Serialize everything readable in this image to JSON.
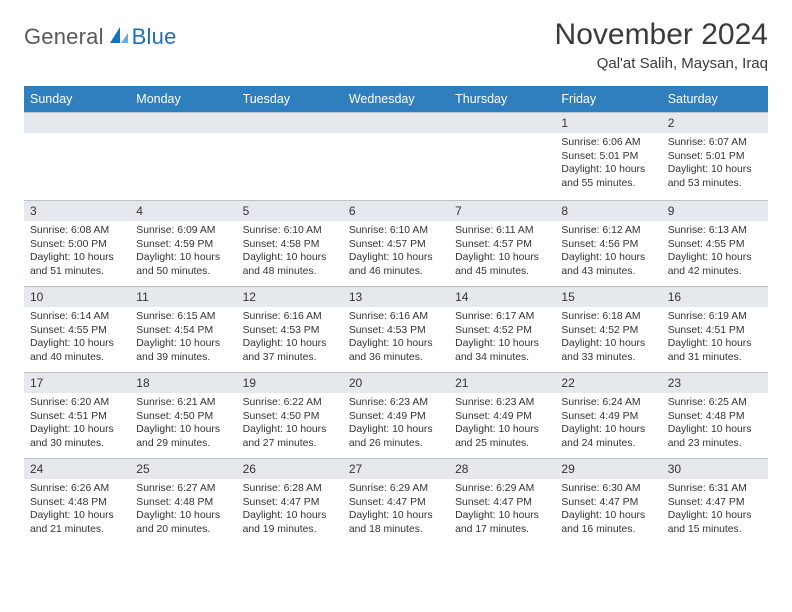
{
  "brand": {
    "word1": "General",
    "word2": "Blue"
  },
  "title": "November 2024",
  "location": "Qal'at Salih, Maysan, Iraq",
  "colors": {
    "header_bg": "#2f7fbf",
    "header_text": "#ffffff",
    "daynum_bg": "#e5e9ed",
    "border": "#b9c1c9",
    "text": "#333333",
    "brand_gray": "#5a5a5a",
    "brand_blue": "#1c6fb8"
  },
  "dow": [
    "Sunday",
    "Monday",
    "Tuesday",
    "Wednesday",
    "Thursday",
    "Friday",
    "Saturday"
  ],
  "weeks": [
    [
      {
        "n": "",
        "sr": "",
        "ss": "",
        "dl": ""
      },
      {
        "n": "",
        "sr": "",
        "ss": "",
        "dl": ""
      },
      {
        "n": "",
        "sr": "",
        "ss": "",
        "dl": ""
      },
      {
        "n": "",
        "sr": "",
        "ss": "",
        "dl": ""
      },
      {
        "n": "",
        "sr": "",
        "ss": "",
        "dl": ""
      },
      {
        "n": "1",
        "sr": "Sunrise: 6:06 AM",
        "ss": "Sunset: 5:01 PM",
        "dl": "Daylight: 10 hours and 55 minutes."
      },
      {
        "n": "2",
        "sr": "Sunrise: 6:07 AM",
        "ss": "Sunset: 5:01 PM",
        "dl": "Daylight: 10 hours and 53 minutes."
      }
    ],
    [
      {
        "n": "3",
        "sr": "Sunrise: 6:08 AM",
        "ss": "Sunset: 5:00 PM",
        "dl": "Daylight: 10 hours and 51 minutes."
      },
      {
        "n": "4",
        "sr": "Sunrise: 6:09 AM",
        "ss": "Sunset: 4:59 PM",
        "dl": "Daylight: 10 hours and 50 minutes."
      },
      {
        "n": "5",
        "sr": "Sunrise: 6:10 AM",
        "ss": "Sunset: 4:58 PM",
        "dl": "Daylight: 10 hours and 48 minutes."
      },
      {
        "n": "6",
        "sr": "Sunrise: 6:10 AM",
        "ss": "Sunset: 4:57 PM",
        "dl": "Daylight: 10 hours and 46 minutes."
      },
      {
        "n": "7",
        "sr": "Sunrise: 6:11 AM",
        "ss": "Sunset: 4:57 PM",
        "dl": "Daylight: 10 hours and 45 minutes."
      },
      {
        "n": "8",
        "sr": "Sunrise: 6:12 AM",
        "ss": "Sunset: 4:56 PM",
        "dl": "Daylight: 10 hours and 43 minutes."
      },
      {
        "n": "9",
        "sr": "Sunrise: 6:13 AM",
        "ss": "Sunset: 4:55 PM",
        "dl": "Daylight: 10 hours and 42 minutes."
      }
    ],
    [
      {
        "n": "10",
        "sr": "Sunrise: 6:14 AM",
        "ss": "Sunset: 4:55 PM",
        "dl": "Daylight: 10 hours and 40 minutes."
      },
      {
        "n": "11",
        "sr": "Sunrise: 6:15 AM",
        "ss": "Sunset: 4:54 PM",
        "dl": "Daylight: 10 hours and 39 minutes."
      },
      {
        "n": "12",
        "sr": "Sunrise: 6:16 AM",
        "ss": "Sunset: 4:53 PM",
        "dl": "Daylight: 10 hours and 37 minutes."
      },
      {
        "n": "13",
        "sr": "Sunrise: 6:16 AM",
        "ss": "Sunset: 4:53 PM",
        "dl": "Daylight: 10 hours and 36 minutes."
      },
      {
        "n": "14",
        "sr": "Sunrise: 6:17 AM",
        "ss": "Sunset: 4:52 PM",
        "dl": "Daylight: 10 hours and 34 minutes."
      },
      {
        "n": "15",
        "sr": "Sunrise: 6:18 AM",
        "ss": "Sunset: 4:52 PM",
        "dl": "Daylight: 10 hours and 33 minutes."
      },
      {
        "n": "16",
        "sr": "Sunrise: 6:19 AM",
        "ss": "Sunset: 4:51 PM",
        "dl": "Daylight: 10 hours and 31 minutes."
      }
    ],
    [
      {
        "n": "17",
        "sr": "Sunrise: 6:20 AM",
        "ss": "Sunset: 4:51 PM",
        "dl": "Daylight: 10 hours and 30 minutes."
      },
      {
        "n": "18",
        "sr": "Sunrise: 6:21 AM",
        "ss": "Sunset: 4:50 PM",
        "dl": "Daylight: 10 hours and 29 minutes."
      },
      {
        "n": "19",
        "sr": "Sunrise: 6:22 AM",
        "ss": "Sunset: 4:50 PM",
        "dl": "Daylight: 10 hours and 27 minutes."
      },
      {
        "n": "20",
        "sr": "Sunrise: 6:23 AM",
        "ss": "Sunset: 4:49 PM",
        "dl": "Daylight: 10 hours and 26 minutes."
      },
      {
        "n": "21",
        "sr": "Sunrise: 6:23 AM",
        "ss": "Sunset: 4:49 PM",
        "dl": "Daylight: 10 hours and 25 minutes."
      },
      {
        "n": "22",
        "sr": "Sunrise: 6:24 AM",
        "ss": "Sunset: 4:49 PM",
        "dl": "Daylight: 10 hours and 24 minutes."
      },
      {
        "n": "23",
        "sr": "Sunrise: 6:25 AM",
        "ss": "Sunset: 4:48 PM",
        "dl": "Daylight: 10 hours and 23 minutes."
      }
    ],
    [
      {
        "n": "24",
        "sr": "Sunrise: 6:26 AM",
        "ss": "Sunset: 4:48 PM",
        "dl": "Daylight: 10 hours and 21 minutes."
      },
      {
        "n": "25",
        "sr": "Sunrise: 6:27 AM",
        "ss": "Sunset: 4:48 PM",
        "dl": "Daylight: 10 hours and 20 minutes."
      },
      {
        "n": "26",
        "sr": "Sunrise: 6:28 AM",
        "ss": "Sunset: 4:47 PM",
        "dl": "Daylight: 10 hours and 19 minutes."
      },
      {
        "n": "27",
        "sr": "Sunrise: 6:29 AM",
        "ss": "Sunset: 4:47 PM",
        "dl": "Daylight: 10 hours and 18 minutes."
      },
      {
        "n": "28",
        "sr": "Sunrise: 6:29 AM",
        "ss": "Sunset: 4:47 PM",
        "dl": "Daylight: 10 hours and 17 minutes."
      },
      {
        "n": "29",
        "sr": "Sunrise: 6:30 AM",
        "ss": "Sunset: 4:47 PM",
        "dl": "Daylight: 10 hours and 16 minutes."
      },
      {
        "n": "30",
        "sr": "Sunrise: 6:31 AM",
        "ss": "Sunset: 4:47 PM",
        "dl": "Daylight: 10 hours and 15 minutes."
      }
    ]
  ]
}
